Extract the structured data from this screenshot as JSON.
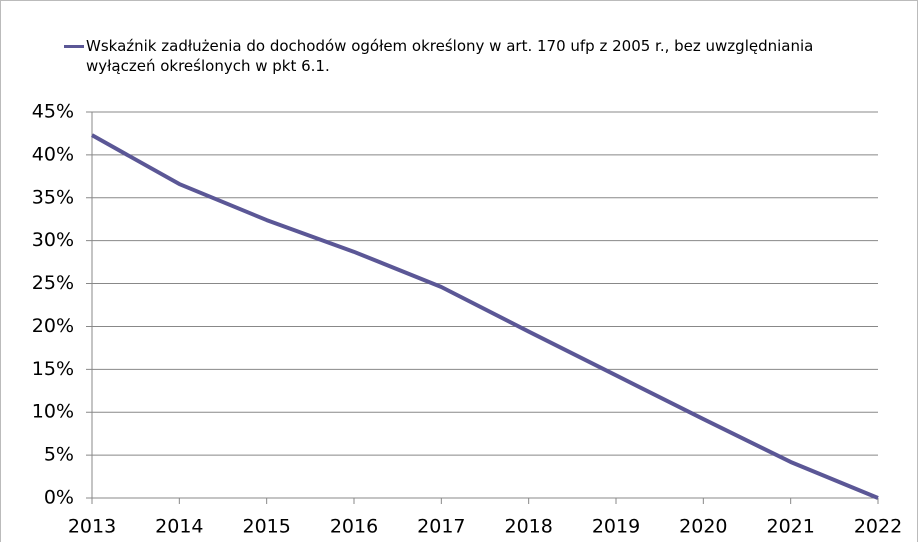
{
  "chart_data": {
    "type": "line",
    "categories": [
      "2013",
      "2014",
      "2015",
      "2016",
      "2017",
      "2018",
      "2019",
      "2020",
      "2021",
      "2022"
    ],
    "series": [
      {
        "name": "Wskaźnik zadłużenia do dochodów ogółem określony w art. 170 ufp z 2005 r., bez uwzględniania wyłączeń określonych w pkt 6.1.",
        "color": "#5b5796",
        "values": [
          42.3,
          36.6,
          32.4,
          28.7,
          24.6,
          19.4,
          14.3,
          9.2,
          4.2,
          0
        ]
      }
    ],
    "ylim": [
      0,
      45
    ],
    "yticks": [
      {
        "value": 0,
        "label": "0%"
      },
      {
        "value": 5,
        "label": "5%"
      },
      {
        "value": 10,
        "label": "10%"
      },
      {
        "value": 15,
        "label": "15%"
      },
      {
        "value": 20,
        "label": "20%"
      },
      {
        "value": 25,
        "label": "25%"
      },
      {
        "value": 30,
        "label": "30%"
      },
      {
        "value": 35,
        "label": "35%"
      },
      {
        "value": 40,
        "label": "40%"
      },
      {
        "value": 45,
        "label": "45%"
      }
    ],
    "grid": true,
    "legend": "top"
  }
}
